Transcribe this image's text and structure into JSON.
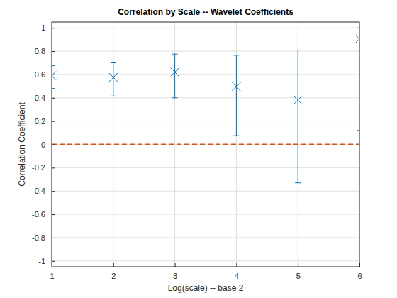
{
  "chart_data": {
    "type": "errorbar",
    "title": "Correlation by Scale -- Wavelet Coefficients",
    "x_label": "Log(scale) -- base 2",
    "y_label": "Correlation Coefficient",
    "x": [
      1,
      2,
      3,
      4,
      5,
      6
    ],
    "series": [
      {
        "type": "errorbar",
        "color": "#0072bd",
        "marker": "x",
        "values": [
          0.59,
          0.575,
          0.62,
          0.495,
          0.38,
          0.905
        ],
        "lower": [
          0.48,
          0.415,
          0.4,
          0.075,
          -0.33,
          0.12
        ],
        "upper": [
          0.675,
          0.7,
          0.775,
          0.765,
          0.81,
          1.0
        ]
      },
      {
        "type": "line",
        "color": "#d95319",
        "line_style": "dashed",
        "values": [
          0,
          0,
          0,
          0,
          0,
          0
        ]
      }
    ],
    "xlim": [
      1,
      6
    ],
    "xticks": [
      1,
      2,
      3,
      4,
      5,
      6
    ],
    "ylim": [
      -1.05,
      1.05
    ],
    "yticks": [
      -1,
      -0.8,
      -0.6,
      -0.4,
      -0.2,
      0,
      0.2,
      0.4,
      0.6,
      0.8,
      1
    ],
    "grid": true
  }
}
